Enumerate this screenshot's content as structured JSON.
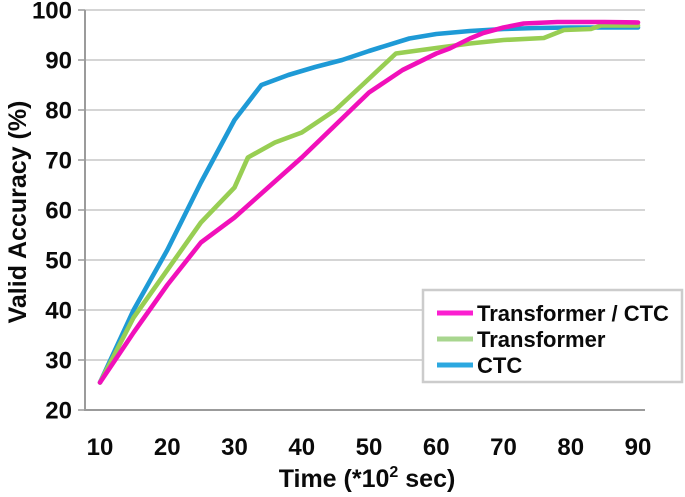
{
  "chart_data": {
    "type": "line",
    "title": "",
    "ylabel": "Valid Accuracy (%)",
    "xlabel": {
      "prefix": "Time (*10",
      "sup": "2",
      "suffix": " sec)"
    },
    "xlim": [
      5,
      95
    ],
    "ylim": [
      20,
      100
    ],
    "x_ticks": [
      10,
      20,
      30,
      40,
      50,
      60,
      70,
      80,
      90
    ],
    "y_ticks": [
      100,
      90,
      80,
      70,
      60,
      50,
      40,
      30,
      20
    ],
    "grid": "horizontal",
    "grid_color": "#c7c7c7",
    "axis_color": "#9b9b9b",
    "legend_position": "bottom-right",
    "legend_border_color": "#cccccc",
    "series": [
      {
        "name": "Transformer / CTC",
        "color": "#F110BA",
        "legend_color": "#FB1FD0",
        "points": [
          [
            10,
            25.5
          ],
          [
            15,
            35.5
          ],
          [
            20,
            45
          ],
          [
            25,
            53.5
          ],
          [
            30,
            58.5
          ],
          [
            35,
            64.5
          ],
          [
            40,
            70.5
          ],
          [
            45,
            77
          ],
          [
            50,
            83.5
          ],
          [
            55,
            88
          ],
          [
            60,
            91.3
          ],
          [
            62,
            92.3
          ],
          [
            65,
            94.3
          ],
          [
            67,
            95.4
          ],
          [
            70,
            96.5
          ],
          [
            73,
            97.3
          ],
          [
            78,
            97.6
          ],
          [
            85,
            97.6
          ],
          [
            90,
            97.5
          ]
        ]
      },
      {
        "name": "Transformer",
        "color": "#98CE53",
        "legend_color": "#A8D68F",
        "points": [
          [
            10,
            25.5
          ],
          [
            15,
            38.5
          ],
          [
            20,
            48
          ],
          [
            25,
            57.5
          ],
          [
            30,
            64.5
          ],
          [
            32,
            70.5
          ],
          [
            36,
            73.5
          ],
          [
            40,
            75.5
          ],
          [
            45,
            80
          ],
          [
            49,
            85
          ],
          [
            54,
            91.3
          ],
          [
            60,
            92.4
          ],
          [
            65,
            93.3
          ],
          [
            70,
            94
          ],
          [
            76,
            94.4
          ],
          [
            79,
            96
          ],
          [
            83,
            96.2
          ],
          [
            84.5,
            96.9
          ],
          [
            90,
            96.9
          ]
        ]
      },
      {
        "name": "CTC",
        "color": "#1E9AD6",
        "legend_color": "#2CA8E0",
        "points": [
          [
            10,
            25.5
          ],
          [
            15,
            40
          ],
          [
            20,
            52
          ],
          [
            25,
            65.5
          ],
          [
            30,
            78
          ],
          [
            34,
            85
          ],
          [
            38,
            87
          ],
          [
            42,
            88.6
          ],
          [
            46,
            90
          ],
          [
            50,
            91.8
          ],
          [
            56,
            94.3
          ],
          [
            60,
            95.2
          ],
          [
            65,
            95.8
          ],
          [
            70,
            96.2
          ],
          [
            75,
            96.4
          ],
          [
            80,
            96.5
          ],
          [
            85,
            96.5
          ],
          [
            90,
            96.5
          ]
        ]
      }
    ]
  }
}
